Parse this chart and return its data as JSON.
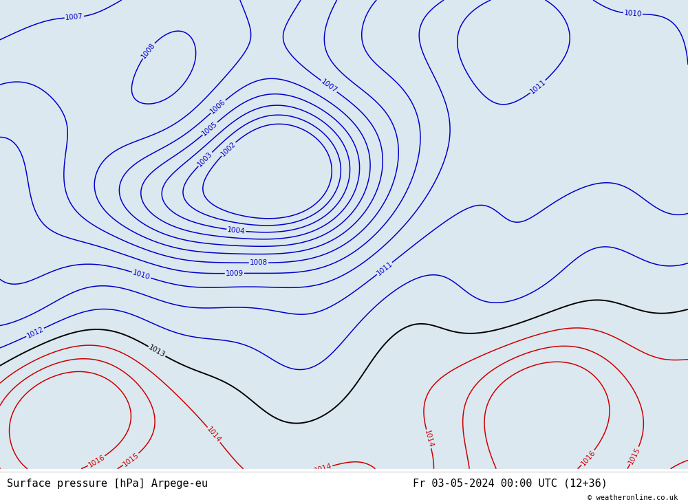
{
  "title_left": "Surface pressure [hPa] Arpege-eu",
  "title_right": "Fr 03-05-2024 00:00 UTC (12+36)",
  "copyright": "© weatheronline.co.uk",
  "bg_color": "#dce8f0",
  "land_color": "#c8eaa0",
  "sea_color": "#dce8f0",
  "contour_color_blue": "#0000cc",
  "contour_color_black": "#000000",
  "contour_color_red": "#cc0000",
  "coast_color": "#aaaaaa",
  "border_color": "#bbbbbb",
  "label_fontsize": 7.5,
  "title_fontsize": 11,
  "figsize": [
    10.0,
    7.33
  ],
  "dpi": 100,
  "xlim": [
    -25,
    42
  ],
  "ylim": [
    30,
    72
  ],
  "blue_levels": [
    1002,
    1003,
    1004,
    1005,
    1006,
    1007,
    1008,
    1009,
    1010,
    1011,
    1012
  ],
  "black_levels": [
    1013
  ],
  "red_levels": [
    1014,
    1015,
    1016
  ]
}
